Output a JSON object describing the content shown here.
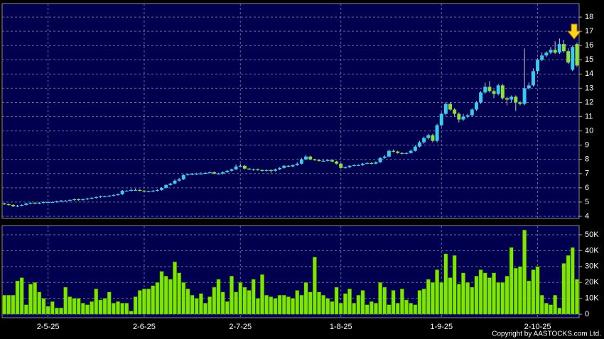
{
  "chart_data": {
    "type": "candlestick",
    "categories": [
      null,
      null,
      null,
      null,
      null,
      null,
      null,
      null,
      null,
      null,
      "2-5-25",
      null,
      null,
      null,
      null,
      null,
      null,
      null,
      null,
      null,
      null,
      null,
      null,
      null,
      null,
      null,
      null,
      null,
      null,
      null,
      null,
      null,
      "2-6-25",
      null,
      null,
      null,
      null,
      null,
      null,
      null,
      null,
      null,
      null,
      null,
      null,
      null,
      null,
      null,
      null,
      null,
      null,
      null,
      null,
      null,
      "2-7-25",
      null,
      null,
      null,
      null,
      null,
      null,
      null,
      null,
      null,
      null,
      null,
      null,
      null,
      null,
      null,
      null,
      null,
      null,
      null,
      null,
      null,
      null,
      "1-8-25",
      null,
      null,
      null,
      null,
      null,
      null,
      null,
      null,
      null,
      null,
      null,
      null,
      null,
      null,
      null,
      null,
      null,
      null,
      null,
      null,
      null,
      null,
      "1-9-25",
      null,
      null,
      null,
      null,
      null,
      null,
      null,
      null,
      null,
      null,
      null,
      null,
      null,
      null,
      null,
      null,
      null,
      null,
      null,
      null,
      null,
      "2-10-25",
      null,
      null,
      null,
      null,
      null,
      null,
      null,
      null,
      null
    ],
    "open": [
      4.9,
      4.85,
      4.8,
      4.7,
      4.75,
      4.8,
      4.9,
      4.95,
      4.9,
      4.95,
      5.0,
      5.0,
      5.0,
      5.05,
      5.1,
      5.1,
      5.15,
      5.2,
      5.15,
      5.2,
      5.25,
      5.3,
      5.35,
      5.4,
      5.4,
      5.45,
      5.5,
      5.55,
      5.8,
      5.8,
      5.85,
      5.85,
      5.8,
      5.75,
      5.75,
      5.8,
      5.85,
      6.0,
      6.2,
      6.3,
      6.5,
      6.6,
      6.9,
      6.95,
      6.95,
      7.0,
      7.0,
      7.05,
      7.1,
      7.0,
      7.0,
      7.1,
      7.2,
      7.3,
      7.5,
      7.55,
      7.35,
      7.3,
      7.3,
      7.25,
      7.2,
      7.25,
      7.2,
      7.3,
      7.4,
      7.55,
      7.5,
      7.6,
      7.7,
      8.0,
      8.2,
      8.0,
      7.95,
      7.9,
      7.9,
      7.95,
      7.85,
      7.7,
      7.4,
      7.45,
      7.55,
      7.6,
      7.6,
      7.7,
      7.75,
      7.7,
      7.8,
      8.1,
      8.2,
      8.6,
      8.55,
      8.45,
      8.4,
      8.45,
      8.6,
      8.9,
      9.2,
      9.5,
      9.7,
      9.3,
      10.4,
      11.2,
      11.9,
      11.5,
      11.2,
      10.8,
      11.0,
      11.1,
      11.5,
      12.0,
      12.7,
      13.1,
      12.8,
      12.6,
      13.2,
      12.3,
      12.2,
      12.4,
      12.0,
      11.9,
      13.0,
      13.2,
      14.2,
      15.0,
      15.3,
      15.5,
      15.7,
      15.5,
      16.1,
      15.6,
      14.3,
      16.1
    ],
    "high": [
      4.95,
      4.9,
      4.85,
      4.8,
      4.85,
      4.95,
      5.0,
      5.0,
      5.0,
      5.05,
      5.05,
      5.05,
      5.1,
      5.15,
      5.15,
      5.2,
      5.25,
      5.25,
      5.25,
      5.3,
      5.35,
      5.4,
      5.45,
      5.45,
      5.5,
      5.55,
      5.6,
      5.85,
      5.85,
      5.95,
      5.95,
      5.9,
      5.85,
      5.8,
      5.85,
      5.9,
      6.05,
      6.25,
      6.35,
      6.6,
      6.7,
      6.95,
      7.0,
      7.05,
      7.05,
      7.1,
      7.1,
      7.15,
      7.15,
      7.05,
      7.15,
      7.25,
      7.35,
      7.65,
      7.7,
      7.6,
      7.4,
      7.35,
      7.35,
      7.3,
      7.3,
      7.3,
      7.35,
      7.45,
      7.6,
      7.6,
      7.65,
      7.8,
      8.1,
      8.3,
      8.25,
      8.05,
      8.0,
      8.0,
      8.0,
      8.0,
      7.9,
      7.75,
      7.5,
      7.6,
      7.65,
      7.65,
      7.75,
      7.8,
      7.8,
      7.85,
      8.15,
      8.3,
      8.7,
      8.7,
      8.6,
      8.5,
      8.5,
      8.7,
      9.0,
      9.3,
      9.6,
      9.8,
      9.8,
      10.5,
      11.3,
      12.0,
      12.0,
      11.6,
      11.3,
      11.2,
      11.2,
      11.6,
      12.1,
      12.8,
      13.4,
      13.5,
      12.9,
      13.3,
      13.3,
      12.4,
      12.5,
      12.5,
      12.1,
      15.8,
      13.4,
      14.4,
      15.1,
      15.5,
      15.6,
      15.9,
      16.3,
      16.5,
      16.4,
      15.8,
      16.0,
      16.2
    ],
    "low": [
      4.8,
      4.75,
      4.65,
      4.65,
      4.7,
      4.75,
      4.85,
      4.85,
      4.85,
      4.9,
      4.95,
      4.95,
      4.95,
      5.0,
      5.05,
      5.05,
      5.1,
      5.1,
      5.1,
      5.15,
      5.2,
      5.25,
      5.3,
      5.35,
      5.35,
      5.4,
      5.45,
      5.5,
      5.75,
      5.75,
      5.8,
      5.75,
      5.7,
      5.7,
      5.7,
      5.75,
      5.8,
      5.95,
      6.15,
      6.25,
      6.45,
      6.55,
      6.85,
      6.9,
      6.9,
      6.95,
      6.95,
      7.0,
      6.95,
      6.95,
      6.95,
      7.05,
      7.15,
      7.25,
      7.45,
      7.3,
      7.25,
      7.2,
      7.2,
      7.15,
      7.15,
      7.05,
      7.15,
      7.25,
      7.35,
      7.45,
      7.45,
      7.55,
      7.65,
      7.95,
      7.95,
      7.9,
      7.85,
      7.85,
      7.85,
      7.8,
      7.65,
      7.35,
      7.35,
      7.4,
      7.5,
      7.55,
      7.55,
      7.65,
      7.65,
      7.65,
      7.75,
      8.05,
      8.15,
      8.5,
      8.4,
      8.35,
      8.35,
      8.4,
      8.55,
      8.85,
      9.1,
      9.4,
      9.2,
      9.2,
      10.3,
      11.1,
      11.4,
      11.0,
      10.6,
      10.7,
      10.9,
      11.0,
      11.4,
      11.9,
      12.6,
      12.7,
      12.3,
      12.5,
      12.2,
      11.8,
      12.0,
      11.4,
      11.8,
      11.8,
      12.9,
      13.1,
      14.0,
      14.9,
      15.2,
      15.4,
      15.4,
      15.4,
      15.5,
      14.7,
      14.2,
      14.5
    ],
    "close": [
      4.85,
      4.8,
      4.7,
      4.75,
      4.8,
      4.9,
      4.95,
      4.9,
      4.95,
      5.0,
      5.0,
      5.0,
      5.05,
      5.1,
      5.1,
      5.15,
      5.2,
      5.15,
      5.2,
      5.25,
      5.3,
      5.35,
      5.4,
      5.4,
      5.45,
      5.5,
      5.55,
      5.8,
      5.8,
      5.85,
      5.85,
      5.8,
      5.75,
      5.75,
      5.8,
      5.85,
      6.0,
      6.2,
      6.3,
      6.5,
      6.6,
      6.9,
      6.95,
      6.95,
      7.0,
      7.0,
      7.05,
      7.1,
      7.0,
      7.0,
      7.1,
      7.2,
      7.3,
      7.5,
      7.55,
      7.35,
      7.3,
      7.3,
      7.25,
      7.2,
      7.25,
      7.2,
      7.3,
      7.4,
      7.55,
      7.5,
      7.6,
      7.7,
      8.0,
      8.2,
      8.0,
      7.95,
      7.9,
      7.9,
      7.95,
      7.85,
      7.7,
      7.4,
      7.45,
      7.55,
      7.6,
      7.6,
      7.7,
      7.75,
      7.7,
      7.8,
      8.1,
      8.2,
      8.6,
      8.55,
      8.45,
      8.4,
      8.45,
      8.6,
      8.9,
      9.2,
      9.5,
      9.7,
      9.3,
      10.4,
      11.2,
      11.9,
      11.5,
      11.2,
      10.8,
      11.0,
      11.1,
      11.5,
      12.0,
      12.7,
      13.1,
      12.8,
      12.6,
      13.2,
      12.3,
      12.2,
      12.4,
      12.0,
      11.9,
      13.0,
      13.2,
      14.2,
      15.0,
      15.3,
      15.5,
      15.7,
      15.5,
      16.1,
      15.6,
      14.8,
      15.9,
      14.6
    ],
    "up_color": "#3cc8f0",
    "down_color": "#8ce03c",
    "ylim": [
      3.85,
      18.95
    ],
    "yticks": [
      4,
      5,
      6,
      7,
      8,
      9,
      10,
      11,
      12,
      13,
      14,
      15,
      16,
      17,
      18
    ],
    "grid": true,
    "volume": {
      "values": [
        12000,
        12000,
        12000,
        21000,
        23000,
        6000,
        19000,
        20000,
        14000,
        10000,
        5000,
        8000,
        4000,
        4000,
        17000,
        11000,
        10000,
        10000,
        7000,
        6000,
        8000,
        16000,
        9000,
        10000,
        14000,
        7000,
        8000,
        7000,
        7000,
        2000,
        11000,
        15000,
        16000,
        16000,
        18000,
        20000,
        27000,
        24000,
        22000,
        33000,
        26000,
        20000,
        16000,
        12000,
        10000,
        13000,
        7000,
        11000,
        17000,
        22000,
        14000,
        8000,
        24000,
        14000,
        20000,
        17000,
        15000,
        22000,
        10000,
        25000,
        12000,
        11000,
        10000,
        12000,
        12000,
        11000,
        10000,
        15000,
        12000,
        20000,
        14000,
        36000,
        14000,
        12000,
        10000,
        8000,
        17000,
        7000,
        13000,
        16000,
        7000,
        12000,
        15000,
        6000,
        8000,
        7000,
        20000,
        17000,
        6000,
        15000,
        7000,
        16000,
        9000,
        7000,
        6000,
        15000,
        16000,
        22000,
        20000,
        28000,
        20000,
        38000,
        23000,
        37000,
        19000,
        26000,
        20000,
        17000,
        24000,
        28000,
        26000,
        23000,
        26000,
        20000,
        20000,
        24000,
        42000,
        29000,
        30000,
        53000,
        21000,
        28000,
        30000,
        12000,
        7000,
        6000,
        12000,
        4000,
        32000,
        37000,
        42000,
        22000
      ],
      "color": "#7ee600",
      "ylim": [
        -2200,
        55800
      ],
      "yticks": [
        0,
        {
          "value": 10000,
          "label": "10K"
        },
        {
          "value": 20000,
          "label": "20K"
        },
        {
          "value": 30000,
          "label": "30K"
        },
        {
          "value": 40000,
          "label": "40K"
        },
        {
          "value": 50000,
          "label": "50K"
        }
      ]
    }
  },
  "footer": {
    "copyright": "Copyright by AASTOCKS.com Ltd."
  }
}
